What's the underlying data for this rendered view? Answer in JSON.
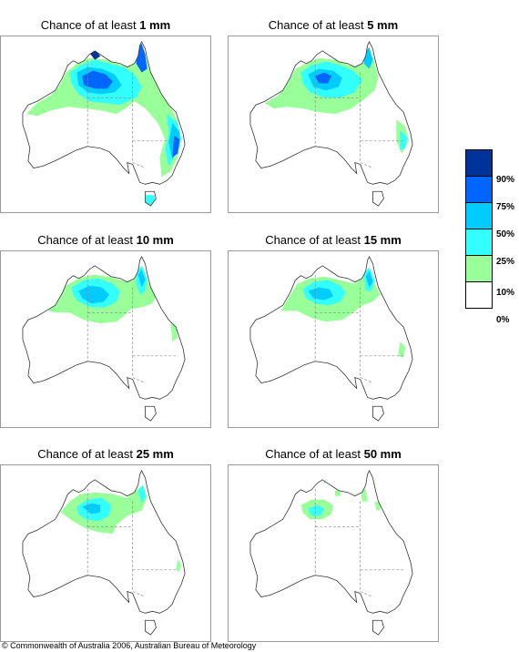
{
  "panels": [
    {
      "title_prefix": "Chance of at least",
      "amount": "1 mm",
      "level": 1
    },
    {
      "title_prefix": "Chance of at least",
      "amount": "5 mm",
      "level": 2
    },
    {
      "title_prefix": "Chance of at least",
      "amount": "10 mm",
      "level": 3
    },
    {
      "title_prefix": "Chance of at least",
      "amount": "15 mm",
      "level": 4
    },
    {
      "title_prefix": "Chance of at least",
      "amount": "25 mm",
      "level": 5
    },
    {
      "title_prefix": "Chance of at least",
      "amount": "50 mm",
      "level": 6
    }
  ],
  "legend": {
    "colors": [
      "#003399",
      "#0066ff",
      "#00ccff",
      "#33ffff",
      "#99ff99",
      "#ffffff"
    ],
    "labels": [
      "90%",
      "75%",
      "50%",
      "25%",
      "10%",
      "0%"
    ]
  },
  "copyright": "© Commonwealth of Australia 2006, Australian Bureau of Meteorology"
}
